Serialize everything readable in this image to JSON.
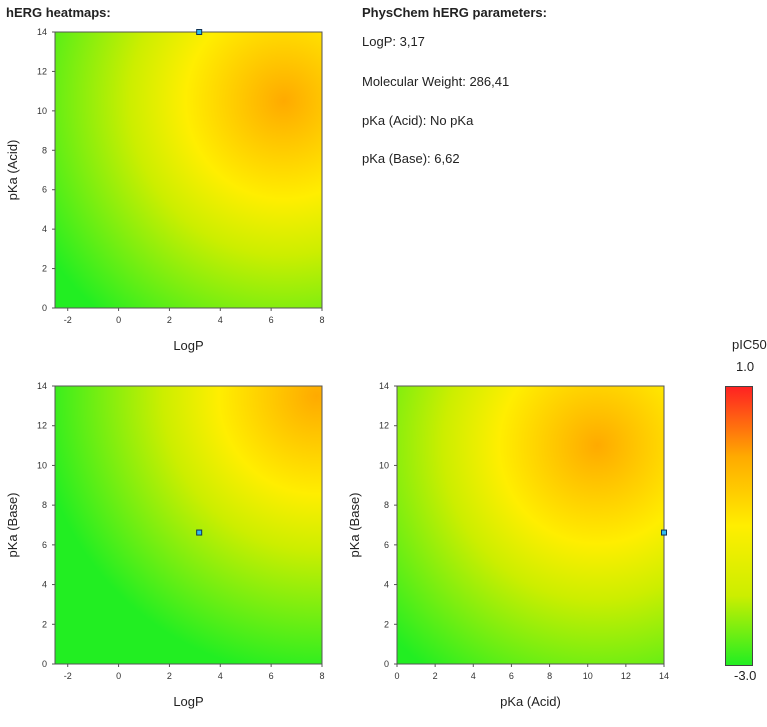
{
  "headings": {
    "heatmaps": "hERG heatmaps:",
    "params": "PhysChem hERG parameters:"
  },
  "params": [
    {
      "label": "LogP:",
      "value": "3,17"
    },
    {
      "label": "Molecular Weight:",
      "value": "286,41"
    },
    {
      "label": "pKa (Acid):",
      "value": "No pKa"
    },
    {
      "label": "pKa (Base):",
      "value": "6,62"
    }
  ],
  "colorbar": {
    "title": "pIC50",
    "max_label": "1.0",
    "min_label": "-3.0",
    "colors": [
      "#22ee22",
      "#ccee00",
      "#ffee00",
      "#ffaa00",
      "#ff2222"
    ]
  },
  "chart_data": [
    {
      "type": "heatmap",
      "xlabel": "LogP",
      "ylabel": "pKa (Acid)",
      "xlim": [
        -2.5,
        8
      ],
      "ylim": [
        0,
        14
      ],
      "xticks": [
        -2,
        0,
        2,
        4,
        6,
        8
      ],
      "yticks": [
        0,
        2,
        4,
        6,
        8,
        10,
        12,
        14
      ],
      "hotspot": [
        6.5,
        10.5
      ],
      "marker": {
        "x": 3.17,
        "y": 14
      }
    },
    {
      "type": "heatmap",
      "xlabel": "LogP",
      "ylabel": "pKa (Base)",
      "xlim": [
        -2.5,
        8
      ],
      "ylim": [
        0,
        14
      ],
      "xticks": [
        -2,
        0,
        2,
        4,
        6,
        8
      ],
      "yticks": [
        0,
        2,
        4,
        6,
        8,
        10,
        12,
        14
      ],
      "hotspot": [
        7.8,
        13.5
      ],
      "marker": {
        "x": 3.17,
        "y": 6.62
      }
    },
    {
      "type": "heatmap",
      "xlabel": "pKa (Acid)",
      "ylabel": "pKa (Base)",
      "xlim": [
        0,
        14
      ],
      "ylim": [
        0,
        14
      ],
      "xticks": [
        0,
        2,
        4,
        6,
        8,
        10,
        12,
        14
      ],
      "yticks": [
        0,
        2,
        4,
        6,
        8,
        10,
        12,
        14
      ],
      "hotspot": [
        10.5,
        11
      ],
      "marker": {
        "x": 14,
        "y": 6.62
      }
    }
  ]
}
